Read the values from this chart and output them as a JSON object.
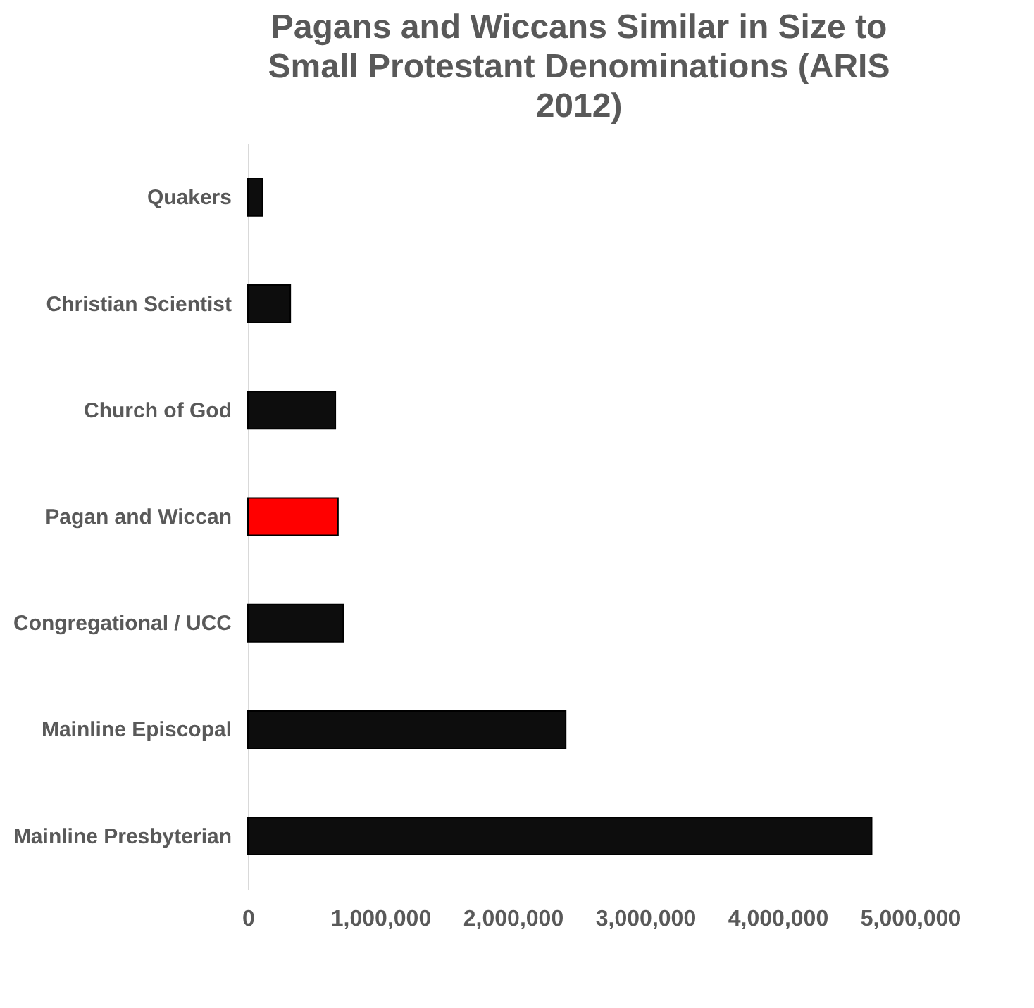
{
  "chart_data": {
    "type": "bar",
    "orientation": "horizontal",
    "title": "Pagans and Wiccans Similar in Size to Small Protestant Denominations (ARIS 2012)",
    "categories": [
      "Quakers",
      "Christian Scientist",
      "Church of God",
      "Pagan and Wiccan",
      "Congregational / UCC",
      "Mainline Episcopal",
      "Mainline Presbyterian"
    ],
    "values": [
      110000,
      320000,
      660000,
      680000,
      720000,
      2400000,
      4710000
    ],
    "colors": [
      "#0d0d0d",
      "#0d0d0d",
      "#0d0d0d",
      "#ff0000",
      "#0d0d0d",
      "#0d0d0d",
      "#0d0d0d"
    ],
    "xlim": [
      0,
      5000000
    ],
    "xticks": [
      0,
      {
        "value": 1000000,
        "label": "1,000,000"
      },
      {
        "value": 2000000,
        "label": "2,000,000"
      },
      {
        "value": 3000000,
        "label": "3,000,000"
      },
      {
        "value": 4000000,
        "label": "4,000,000"
      },
      {
        "value": 5000000,
        "label": "5,000,000"
      }
    ],
    "grid": false
  }
}
